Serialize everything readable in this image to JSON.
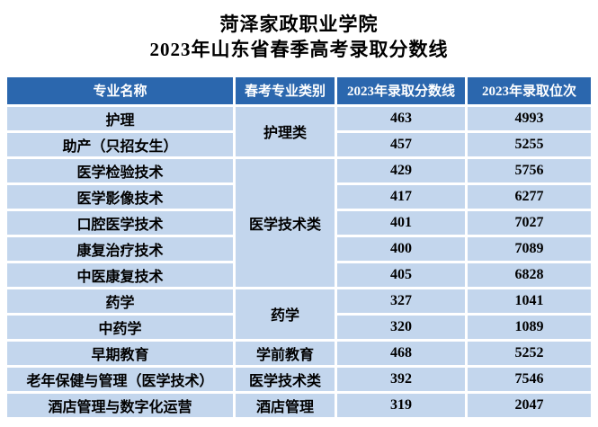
{
  "header": {
    "title": "菏泽家政职业学院",
    "subtitle": "2023年山东省春季高考录取分数线"
  },
  "colors": {
    "header_bg": "#2B67AE",
    "header_text": "#FFFFFF",
    "row_bg": "#C3D6ED",
    "row_text": "#000000",
    "gap": "#FFFFFF"
  },
  "table": {
    "headers": [
      "专业名称",
      "春考专业类别",
      "2023年录取分数线",
      "2023年录取位次"
    ],
    "rows": [
      {
        "major": "护理",
        "category": "护理类",
        "score": "463",
        "rank": "4993"
      },
      {
        "major": "助产（只招女生）",
        "category": "",
        "score": "457",
        "rank": "5255"
      },
      {
        "major": "医学检验技术",
        "category": "医学技术类",
        "score": "429",
        "rank": "5756"
      },
      {
        "major": "医学影像技术",
        "category": "",
        "score": "417",
        "rank": "6277"
      },
      {
        "major": "口腔医学技术",
        "category": "",
        "score": "401",
        "rank": "7027"
      },
      {
        "major": "康复治疗技术",
        "category": "",
        "score": "400",
        "rank": "7089"
      },
      {
        "major": "中医康复技术",
        "category": "",
        "score": "405",
        "rank": "6828"
      },
      {
        "major": "药学",
        "category": "药学",
        "score": "327",
        "rank": "1041"
      },
      {
        "major": "中药学",
        "category": "",
        "score": "320",
        "rank": "1089"
      },
      {
        "major": "早期教育",
        "category": "学前教育",
        "score": "468",
        "rank": "5252"
      },
      {
        "major": "老年保健与管理（医学技术）",
        "category": "医学技术类",
        "score": "392",
        "rank": "7546"
      },
      {
        "major": "酒店管理与数字化运营",
        "category": "酒店管理",
        "score": "319",
        "rank": "2047"
      }
    ]
  }
}
